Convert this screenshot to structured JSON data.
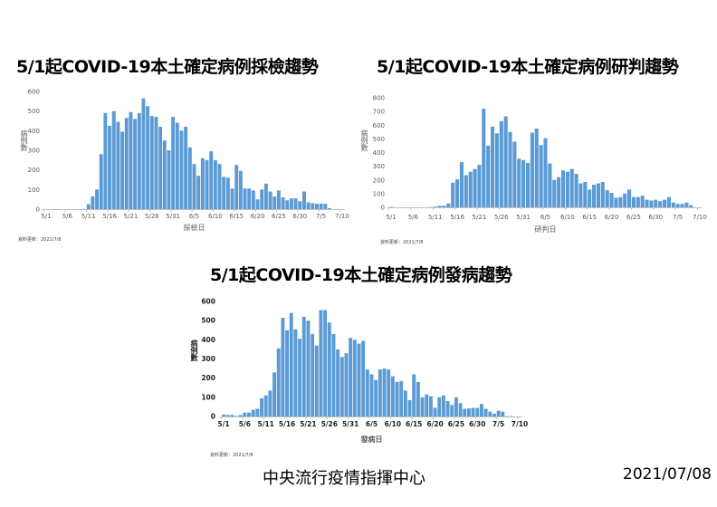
{
  "titles": [
    "5/1起COVID-19本土確定病例採檢趨勢",
    "5/1起COVID-19本土確定病例研判趨勢",
    "5/1起COVID-19本土確定病例發病趨勢"
  ],
  "footer": {
    "org": "中央流行疫情指揮中心",
    "date": "2021/07/08"
  },
  "colors": {
    "bar": "#5b9bd5",
    "axis": "#bfbfbf"
  },
  "chart_data": [
    {
      "type": "bar",
      "title": "5/1起COVID-19本土確定病例採檢趨勢",
      "xlabel": "採檢日",
      "ylabel": "病例數",
      "ylim": [
        0,
        600
      ],
      "yticks": [
        0,
        100,
        200,
        300,
        400,
        500,
        600
      ],
      "xtick_labels": [
        "5/1",
        "5/6",
        "5/11",
        "5/16",
        "5/21",
        "5/26",
        "5/31",
        "6/5",
        "6/10",
        "6/15",
        "6/20",
        "6/25",
        "6/30",
        "7/5",
        "7/10"
      ],
      "x_start": "5/1",
      "x_end": "7/10",
      "values": [
        0,
        0,
        0,
        0,
        0,
        0,
        0,
        0,
        0,
        1,
        25,
        65,
        100,
        280,
        490,
        425,
        500,
        445,
        395,
        465,
        495,
        460,
        490,
        565,
        525,
        475,
        470,
        420,
        350,
        300,
        470,
        440,
        400,
        420,
        315,
        230,
        170,
        260,
        250,
        295,
        250,
        230,
        165,
        160,
        105,
        225,
        195,
        105,
        105,
        95,
        50,
        100,
        130,
        90,
        65,
        95,
        60,
        45,
        55,
        55,
        40,
        90,
        35,
        30,
        28,
        28,
        28,
        5,
        0,
        0,
        0
      ],
      "note": "資料更新：2021/7/8"
    },
    {
      "type": "bar",
      "title": "5/1起COVID-19本土確定病例研判趨勢",
      "xlabel": "研判日",
      "ylabel": "病例數",
      "ylim": [
        0,
        800
      ],
      "yticks": [
        0,
        100,
        200,
        300,
        400,
        500,
        600,
        700,
        800
      ],
      "xtick_labels": [
        "5/1",
        "5/6",
        "5/11",
        "5/16",
        "5/21",
        "5/26",
        "5/31",
        "6/5",
        "6/10",
        "6/15",
        "6/20",
        "6/25",
        "6/30",
        "7/5",
        "7/10"
      ],
      "x_start": "5/1",
      "x_end": "7/10",
      "values": [
        3,
        0,
        0,
        0,
        0,
        0,
        0,
        0,
        0,
        2,
        5,
        12,
        12,
        28,
        180,
        205,
        330,
        235,
        260,
        280,
        310,
        720,
        450,
        590,
        540,
        630,
        665,
        550,
        480,
        355,
        345,
        325,
        545,
        575,
        455,
        505,
        320,
        200,
        220,
        270,
        260,
        280,
        245,
        175,
        185,
        130,
        165,
        175,
        185,
        125,
        105,
        70,
        75,
        100,
        130,
        75,
        75,
        85,
        55,
        50,
        55,
        45,
        55,
        75,
        35,
        25,
        25,
        35,
        15,
        0,
        0
      ],
      "note": "資料更新：2021/7/8"
    },
    {
      "type": "bar",
      "title": "5/1起COVID-19本土確定病例發病趨勢",
      "xlabel": "發病日",
      "ylabel": "病例數",
      "ylim": [
        0,
        600
      ],
      "yticks": [
        0,
        100,
        200,
        300,
        400,
        500,
        600
      ],
      "xtick_labels": [
        "5/1",
        "5/6",
        "5/11",
        "5/16",
        "5/21",
        "5/26",
        "5/31",
        "6/5",
        "6/10",
        "6/15",
        "6/20",
        "6/25",
        "6/30",
        "7/5",
        "7/10"
      ],
      "x_start": "5/1",
      "x_end": "7/10",
      "values": [
        10,
        8,
        8,
        2,
        8,
        20,
        20,
        35,
        40,
        95,
        110,
        135,
        230,
        355,
        515,
        450,
        540,
        455,
        405,
        520,
        500,
        430,
        370,
        555,
        555,
        490,
        430,
        350,
        310,
        330,
        410,
        400,
        380,
        395,
        245,
        220,
        190,
        245,
        250,
        245,
        210,
        180,
        185,
        135,
        85,
        220,
        180,
        100,
        115,
        105,
        45,
        100,
        110,
        80,
        60,
        100,
        70,
        40,
        42,
        45,
        45,
        65,
        40,
        25,
        15,
        30,
        25,
        2,
        2,
        0,
        0
      ],
      "note": "資料更新：2021/7/8"
    }
  ]
}
